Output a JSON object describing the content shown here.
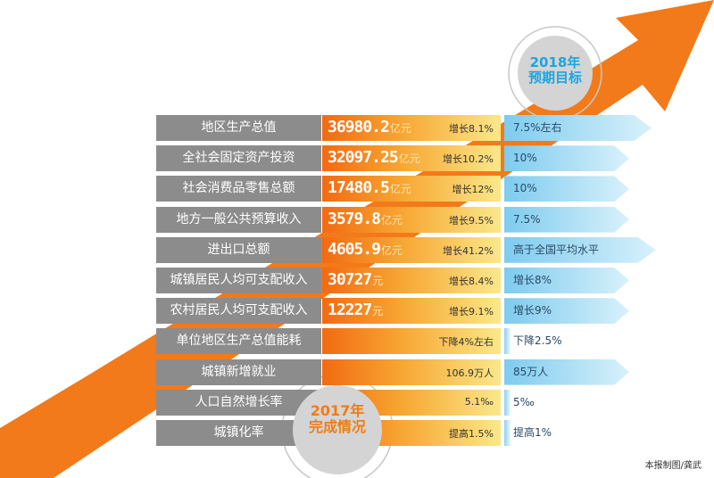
{
  "badges": {
    "target_2018": {
      "year": "2018年",
      "label": "预期目标"
    },
    "done_2017": {
      "year": "2017年",
      "label": "完成情况"
    }
  },
  "rows": [
    {
      "label": "地区生产总值",
      "value": "36980.2",
      "unit": "亿元",
      "growth": "增长8.1%",
      "target": "7.5%左右"
    },
    {
      "label": "全社会固定资产投资",
      "value": "32097.25",
      "unit": "亿元",
      "growth": "增长10.2%",
      "target": "10%"
    },
    {
      "label": "社会消费品零售总额",
      "value": "17480.5",
      "unit": "亿元",
      "growth": "增长12%",
      "target": "10%"
    },
    {
      "label": "地方一般公共预算收入",
      "value": "3579.8",
      "unit": "亿元",
      "growth": "增长9.5%",
      "target": "7.5%"
    },
    {
      "label": "进出口总额",
      "value": "4605.9",
      "unit": "亿元",
      "growth": "增长41.2%",
      "target": "高于全国平均水平"
    },
    {
      "label": "城镇居民人均可支配收入",
      "value": "30727",
      "unit": "元",
      "growth": "增长8.4%",
      "target": "增长8%"
    },
    {
      "label": "农村居民人均可支配收入",
      "value": "12227",
      "unit": "元",
      "growth": "增长9.1%",
      "target": "增长9%"
    },
    {
      "label": "单位地区生产总值能耗",
      "value": "",
      "unit": "",
      "growth": "下降4%左右",
      "target": "下降2.5%"
    },
    {
      "label": "城镇新增就业",
      "value": "",
      "unit": "",
      "growth": "106.9万人",
      "target": "85万人"
    },
    {
      "label": "人口自然增长率",
      "value": "",
      "unit": "",
      "growth": "5.1‰",
      "target": "5‰"
    },
    {
      "label": "城镇化率",
      "value": "",
      "unit": "",
      "growth": "提高1.5%",
      "target": "提高1%"
    }
  ],
  "credit": "本报制图/龚武",
  "colors": {
    "orange": "#f26a12",
    "gray": "#8c8c8c",
    "blue": "#7ecbef"
  }
}
